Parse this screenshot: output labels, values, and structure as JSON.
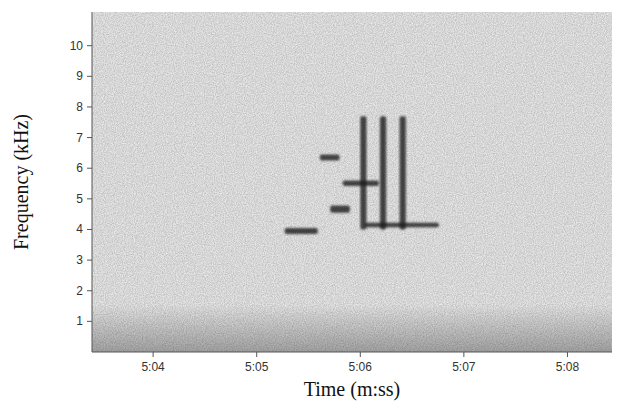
{
  "chart_data": {
    "type": "spectrogram",
    "x_label": "Time (m:ss)",
    "y_label": "Frequency (kHz)",
    "xlim": [
      303.41,
      308.43
    ],
    "xticks": [
      {
        "value": 304,
        "label": "5:04"
      },
      {
        "value": 305,
        "label": "5:05"
      },
      {
        "value": 306,
        "label": "5:06"
      },
      {
        "value": 307,
        "label": "5:07"
      },
      {
        "value": 308,
        "label": "5:08"
      }
    ],
    "ylim": [
      0,
      11.1
    ],
    "yticks": [
      1,
      2,
      3,
      4,
      5,
      6,
      7,
      8,
      9,
      10
    ],
    "color": "#1e1e1e",
    "elements": [
      {
        "start": 305.27,
        "end": 305.59,
        "low": 3.85,
        "high": 4.05
      },
      {
        "start": 305.61,
        "end": 305.8,
        "low": 6.25,
        "high": 6.45
      },
      {
        "start": 305.71,
        "end": 305.9,
        "low": 4.55,
        "high": 4.78
      },
      {
        "start": 305.83,
        "end": 306.18,
        "low": 5.42,
        "high": 5.6
      },
      {
        "start": 306.04,
        "end": 306.76,
        "low": 4.07,
        "high": 4.22
      },
      {
        "start": 306.0,
        "end": 306.06,
        "low": 4.0,
        "high": 7.7
      },
      {
        "start": 306.19,
        "end": 306.25,
        "low": 4.0,
        "high": 7.7
      },
      {
        "start": 306.38,
        "end": 306.44,
        "low": 4.0,
        "high": 7.7
      }
    ]
  }
}
